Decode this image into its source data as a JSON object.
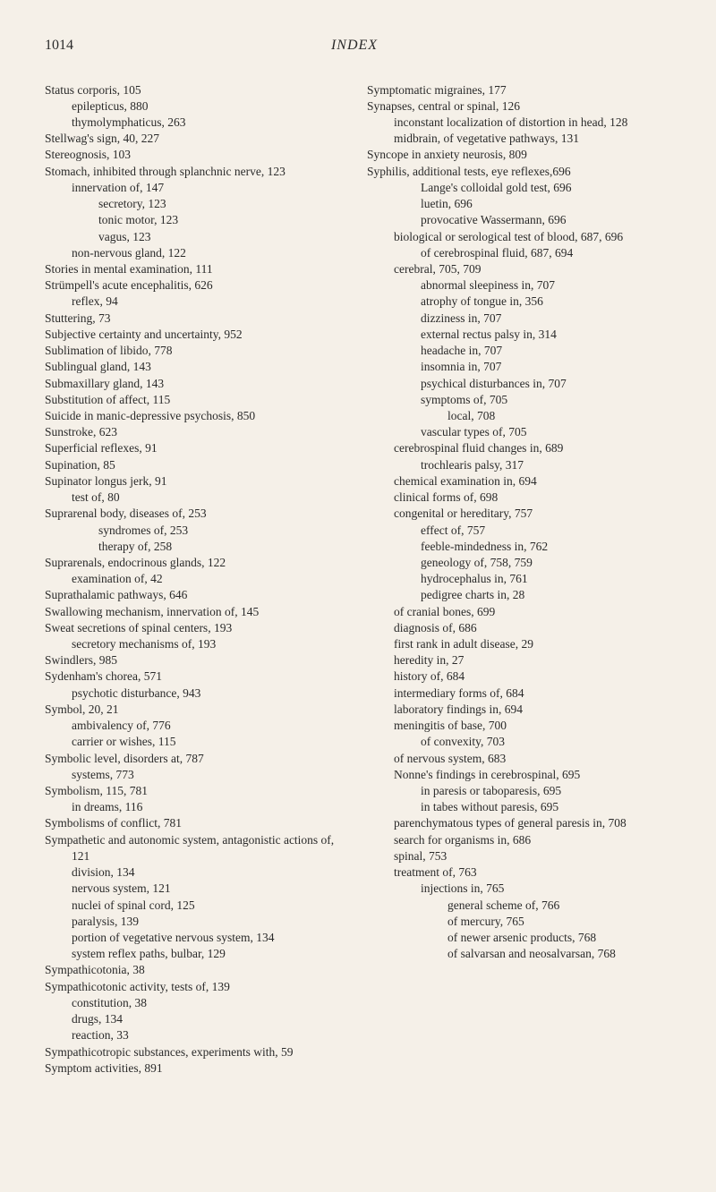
{
  "header": {
    "page_number": "1014",
    "title": "INDEX"
  },
  "left_column": [
    {
      "level": 0,
      "text": "Status corporis, 105"
    },
    {
      "level": 1,
      "text": "epilepticus, 880"
    },
    {
      "level": 1,
      "text": "thymolymphaticus, 263"
    },
    {
      "level": 0,
      "text": "Stellwag's sign, 40, 227"
    },
    {
      "level": 0,
      "text": "Stereognosis, 103"
    },
    {
      "level": 0,
      "text": "Stomach, inhibited through splanchnic nerve, 123"
    },
    {
      "level": 1,
      "text": "innervation of, 147"
    },
    {
      "level": 2,
      "text": "secretory, 123"
    },
    {
      "level": 2,
      "text": "tonic motor, 123"
    },
    {
      "level": 2,
      "text": "vagus, 123"
    },
    {
      "level": 1,
      "text": "non-nervous gland, 122"
    },
    {
      "level": 0,
      "text": "Stories in mental examination, 111"
    },
    {
      "level": 0,
      "text": "Strümpell's acute encephalitis, 626"
    },
    {
      "level": 1,
      "text": "reflex, 94"
    },
    {
      "level": 0,
      "text": "Stuttering, 73"
    },
    {
      "level": 0,
      "text": "Subjective certainty and uncertainty, 952"
    },
    {
      "level": 0,
      "text": "Sublimation of libido, 778"
    },
    {
      "level": 0,
      "text": "Sublingual gland, 143"
    },
    {
      "level": 0,
      "text": "Submaxillary gland, 143"
    },
    {
      "level": 0,
      "text": "Substitution of affect, 115"
    },
    {
      "level": 0,
      "text": "Suicide in manic-depressive psychosis, 850"
    },
    {
      "level": 0,
      "text": "Sunstroke, 623"
    },
    {
      "level": 0,
      "text": "Superficial reflexes, 91"
    },
    {
      "level": 0,
      "text": "Supination, 85"
    },
    {
      "level": 0,
      "text": "Supinator longus jerk, 91"
    },
    {
      "level": 1,
      "text": "test of, 80"
    },
    {
      "level": 0,
      "text": "Suprarenal body, diseases of, 253"
    },
    {
      "level": 2,
      "text": "syndromes of, 253"
    },
    {
      "level": 2,
      "text": "therapy of, 258"
    },
    {
      "level": 0,
      "text": "Suprarenals, endocrinous glands, 122"
    },
    {
      "level": 1,
      "text": "examination of, 42"
    },
    {
      "level": 0,
      "text": "Suprathalamic pathways, 646"
    },
    {
      "level": 0,
      "text": "Swallowing mechanism, innervation of, 145"
    },
    {
      "level": 0,
      "text": "Sweat secretions of spinal centers, 193"
    },
    {
      "level": 1,
      "text": "secretory mechanisms of, 193"
    },
    {
      "level": 0,
      "text": "Swindlers, 985"
    },
    {
      "level": 0,
      "text": "Sydenham's chorea, 571"
    },
    {
      "level": 1,
      "text": "psychotic disturbance, 943"
    },
    {
      "level": 0,
      "text": "Symbol, 20, 21"
    },
    {
      "level": 1,
      "text": "ambivalency of, 776"
    },
    {
      "level": 1,
      "text": "carrier or wishes, 115"
    },
    {
      "level": 0,
      "text": "Symbolic level, disorders at, 787"
    },
    {
      "level": 1,
      "text": "systems, 773"
    },
    {
      "level": 0,
      "text": "Symbolism, 115, 781"
    },
    {
      "level": 1,
      "text": "in dreams, 116"
    },
    {
      "level": 0,
      "text": "Symbolisms of conflict, 781"
    },
    {
      "level": 0,
      "text": "Sympathetic and autonomic system, antagonistic actions of, 121"
    },
    {
      "level": 1,
      "text": "division, 134"
    },
    {
      "level": 1,
      "text": "nervous system, 121"
    },
    {
      "level": 1,
      "text": "nuclei of spinal cord, 125"
    },
    {
      "level": 1,
      "text": "paralysis, 139"
    },
    {
      "level": 1,
      "text": "portion of vegetative nervous system, 134"
    },
    {
      "level": 1,
      "text": "system reflex paths, bulbar, 129"
    },
    {
      "level": 0,
      "text": "Sympathicotonia, 38"
    },
    {
      "level": 0,
      "text": "Sympathicotonic activity, tests of, 139"
    },
    {
      "level": 1,
      "text": "constitution, 38"
    },
    {
      "level": 1,
      "text": "drugs, 134"
    },
    {
      "level": 1,
      "text": "reaction, 33"
    },
    {
      "level": 0,
      "text": "Sympathicotropic substances, experiments with, 59"
    },
    {
      "level": 0,
      "text": "Symptom activities, 891"
    }
  ],
  "right_column": [
    {
      "level": 0,
      "text": "Symptomatic migraines, 177"
    },
    {
      "level": 0,
      "text": "Synapses, central or spinal, 126"
    },
    {
      "level": 1,
      "text": "inconstant localization of distortion in head, 128"
    },
    {
      "level": 1,
      "text": "midbrain, of vegetative pathways, 131"
    },
    {
      "level": 0,
      "text": "Syncope in anxiety neurosis, 809"
    },
    {
      "level": 0,
      "text": "Syphilis, additional tests, eye reflexes,696"
    },
    {
      "level": 2,
      "text": "Lange's colloidal gold test, 696"
    },
    {
      "level": 2,
      "text": "luetin, 696"
    },
    {
      "level": 2,
      "text": "provocative Wassermann, 696"
    },
    {
      "level": 1,
      "text": "biological or serological test of blood, 687, 696"
    },
    {
      "level": 2,
      "text": "of cerebrospinal fluid, 687, 694"
    },
    {
      "level": 1,
      "text": "cerebral, 705, 709"
    },
    {
      "level": 2,
      "text": "abnormal sleepiness in, 707"
    },
    {
      "level": 2,
      "text": "atrophy of tongue in, 356"
    },
    {
      "level": 2,
      "text": "dizziness in, 707"
    },
    {
      "level": 2,
      "text": "external rectus palsy in, 314"
    },
    {
      "level": 2,
      "text": "headache in, 707"
    },
    {
      "level": 2,
      "text": "insomnia in, 707"
    },
    {
      "level": 2,
      "text": "psychical disturbances in, 707"
    },
    {
      "level": 2,
      "text": "symptoms of, 705"
    },
    {
      "level": 3,
      "text": "local, 708"
    },
    {
      "level": 2,
      "text": "vascular types of, 705"
    },
    {
      "level": 1,
      "text": "cerebrospinal fluid changes in, 689"
    },
    {
      "level": 2,
      "text": "trochlearis palsy, 317"
    },
    {
      "level": 1,
      "text": "chemical examination in, 694"
    },
    {
      "level": 1,
      "text": "clinical forms of, 698"
    },
    {
      "level": 1,
      "text": "congenital or hereditary, 757"
    },
    {
      "level": 2,
      "text": "effect of, 757"
    },
    {
      "level": 2,
      "text": "feeble-mindedness in, 762"
    },
    {
      "level": 2,
      "text": "geneology of, 758, 759"
    },
    {
      "level": 2,
      "text": "hydrocephalus in, 761"
    },
    {
      "level": 2,
      "text": "pedigree charts in, 28"
    },
    {
      "level": 1,
      "text": "of cranial bones, 699"
    },
    {
      "level": 1,
      "text": "diagnosis of, 686"
    },
    {
      "level": 1,
      "text": "first rank in adult disease, 29"
    },
    {
      "level": 1,
      "text": "heredity in, 27"
    },
    {
      "level": 1,
      "text": "history of, 684"
    },
    {
      "level": 1,
      "text": "intermediary forms of, 684"
    },
    {
      "level": 1,
      "text": "laboratory findings in, 694"
    },
    {
      "level": 1,
      "text": "meningitis of base, 700"
    },
    {
      "level": 2,
      "text": "of convexity, 703"
    },
    {
      "level": 1,
      "text": "of nervous system, 683"
    },
    {
      "level": 1,
      "text": "Nonne's findings in cerebrospinal, 695"
    },
    {
      "level": 2,
      "text": "in paresis or taboparesis, 695"
    },
    {
      "level": 2,
      "text": "in tabes without paresis, 695"
    },
    {
      "level": 1,
      "text": "parenchymatous types of general paresis in, 708"
    },
    {
      "level": 1,
      "text": "search for organisms in, 686"
    },
    {
      "level": 1,
      "text": "spinal, 753"
    },
    {
      "level": 1,
      "text": "treatment of, 763"
    },
    {
      "level": 2,
      "text": "injections in, 765"
    },
    {
      "level": 3,
      "text": "general scheme of, 766"
    },
    {
      "level": 3,
      "text": "of mercury, 765"
    },
    {
      "level": 3,
      "text": "of newer arsenic products, 768"
    },
    {
      "level": 3,
      "text": "of salvarsan and neosalvarsan, 768"
    }
  ]
}
